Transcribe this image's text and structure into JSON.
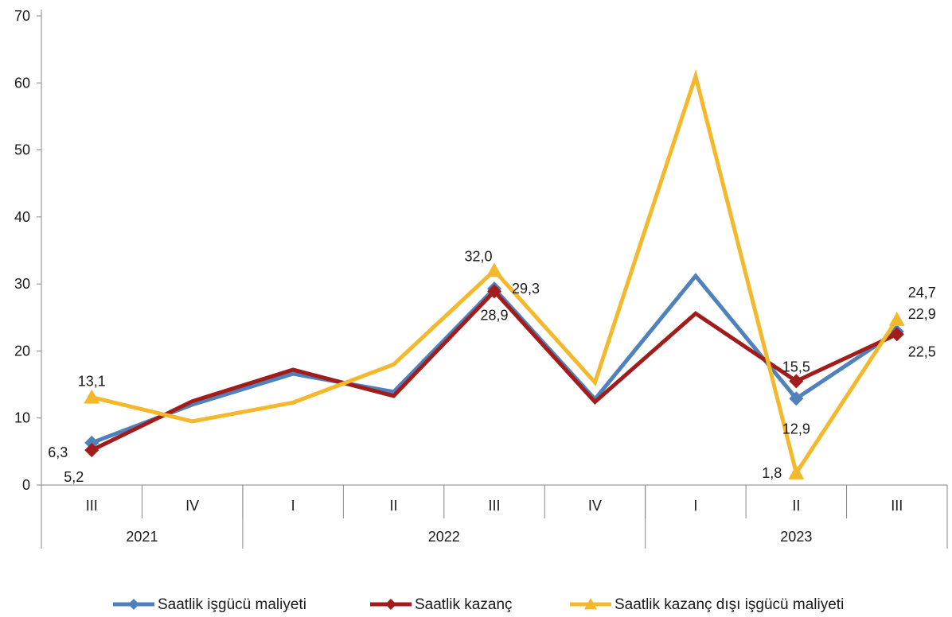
{
  "chart_data": {
    "type": "line",
    "title": "",
    "xlabel": "",
    "ylabel": "",
    "ylim": [
      0,
      70
    ],
    "yticks": [
      "0",
      "10",
      "20",
      "30",
      "40",
      "50",
      "60",
      "70"
    ],
    "grid": false,
    "legend_position": "bottom",
    "categories": [
      "III",
      "IV",
      "I",
      "II",
      "III",
      "IV",
      "I",
      "II",
      "III"
    ],
    "year_groups": [
      {
        "label": "2021",
        "count": 2
      },
      {
        "label": "2022",
        "count": 4
      },
      {
        "label": "2023",
        "count": 3
      }
    ],
    "series": [
      {
        "name": "Saatlik işgücü maliyeti",
        "color": "#4F81BD",
        "marker": "diamond",
        "values": [
          6.3,
          12.0,
          16.6,
          13.9,
          29.3,
          12.8,
          31.2,
          12.9,
          22.9
        ],
        "labels": [
          "6,3",
          "",
          "",
          "",
          "29,3",
          "",
          "",
          "12,9",
          "22,9"
        ]
      },
      {
        "name": "Saatlik kazanç",
        "color": "#A31C1C",
        "marker": "diamond",
        "values": [
          5.2,
          12.5,
          17.2,
          13.3,
          28.9,
          12.4,
          25.6,
          15.5,
          22.5
        ],
        "labels": [
          "5,2",
          "",
          "",
          "",
          "28,9",
          "",
          "",
          "15,5",
          "22,5"
        ]
      },
      {
        "name": "Saatlik kazanç dışı işgücü maliyeti",
        "color": "#F3B82B",
        "marker": "triangle",
        "values": [
          13.1,
          9.5,
          12.3,
          18.0,
          32.0,
          15.3,
          61.0,
          1.8,
          24.7
        ],
        "labels": [
          "13,1",
          "",
          "",
          "",
          "32,0",
          "",
          "",
          "1,8",
          "24,7"
        ]
      }
    ]
  }
}
